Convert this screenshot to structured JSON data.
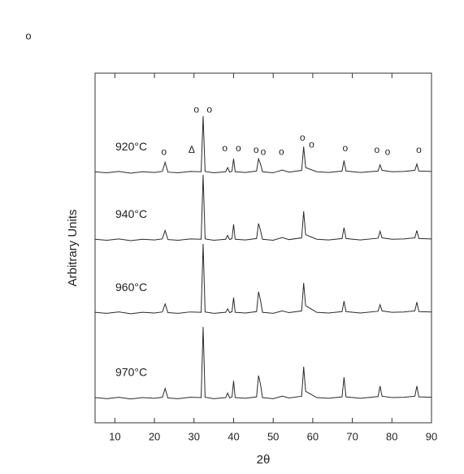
{
  "chart_data": {
    "type": "line",
    "corner_mark": "o",
    "x_label": "2θ",
    "y_label": "Arbitrary Units",
    "xlim": [
      5,
      90
    ],
    "xticks": [
      10,
      20,
      30,
      40,
      50,
      60,
      70,
      80,
      90
    ],
    "ylim": [
      0,
      100
    ],
    "x": [
      5,
      8,
      11,
      14,
      17,
      20,
      22,
      22.7,
      23.4,
      26,
      29,
      31.8,
      32.3,
      32.8,
      35,
      38,
      38.5,
      39,
      39.6,
      40,
      40.4,
      43,
      45.8,
      46.3,
      46.8,
      47.3,
      50,
      52.3,
      54,
      57.2,
      57.7,
      58.2,
      61,
      64,
      67.4,
      67.9,
      68.4,
      72,
      76.5,
      77,
      77.5,
      80,
      83,
      85.8,
      86.3,
      86.8,
      90
    ],
    "series": [
      {
        "name": "920°C",
        "color": "#2a2a2a",
        "values": [
          71.8,
          71.5,
          71.9,
          71.4,
          71.8,
          71.6,
          71.9,
          74.5,
          71.7,
          71.5,
          71.9,
          71.8,
          87.7,
          71.9,
          71.5,
          71.8,
          73.0,
          71.7,
          72.0,
          75.5,
          71.8,
          71.6,
          72.0,
          75.5,
          74.0,
          71.8,
          71.5,
          72.3,
          71.7,
          72.2,
          79.0,
          73.0,
          71.8,
          71.6,
          72.0,
          75.0,
          72.0,
          71.6,
          72.0,
          73.8,
          72.2,
          71.8,
          71.9,
          72.2,
          74.0,
          72.0,
          71.9
        ]
      },
      {
        "name": "940°C",
        "color": "#2a2a2a",
        "values": [
          52.5,
          52.2,
          52.6,
          52.1,
          52.5,
          52.3,
          52.6,
          55.0,
          52.4,
          52.2,
          52.6,
          52.5,
          70.9,
          52.6,
          52.2,
          52.5,
          53.6,
          52.4,
          52.7,
          56.8,
          52.5,
          52.3,
          52.7,
          57.0,
          55.0,
          52.5,
          52.2,
          53.0,
          52.4,
          52.9,
          60.5,
          53.8,
          52.5,
          52.3,
          52.7,
          55.8,
          52.7,
          52.3,
          52.8,
          54.8,
          52.9,
          52.5,
          52.6,
          52.9,
          55.0,
          52.7,
          52.6
        ]
      },
      {
        "name": "960°C",
        "color": "#2a2a2a",
        "values": [
          31.6,
          31.3,
          31.7,
          31.2,
          31.6,
          31.4,
          31.7,
          34.0,
          31.5,
          31.3,
          31.7,
          31.6,
          51.2,
          31.7,
          31.3,
          31.6,
          32.6,
          31.5,
          31.8,
          35.8,
          31.6,
          31.4,
          31.8,
          37.5,
          35.0,
          31.6,
          31.3,
          32.0,
          31.5,
          32.0,
          40.0,
          33.5,
          31.6,
          31.4,
          31.8,
          34.8,
          31.8,
          31.4,
          31.9,
          33.8,
          32.0,
          31.6,
          31.7,
          32.0,
          34.5,
          31.8,
          31.7
        ]
      },
      {
        "name": "970°C",
        "color": "#2a2a2a",
        "values": [
          7.2,
          6.9,
          7.3,
          6.8,
          7.2,
          7.0,
          7.3,
          9.8,
          7.1,
          6.9,
          7.3,
          7.2,
          27.4,
          7.3,
          6.9,
          7.2,
          8.5,
          7.1,
          7.4,
          12.0,
          7.2,
          7.0,
          7.4,
          13.5,
          11.0,
          7.2,
          6.9,
          7.6,
          7.1,
          7.6,
          16.0,
          9.0,
          7.2,
          7.0,
          7.4,
          13.0,
          7.4,
          7.0,
          7.5,
          10.5,
          7.6,
          7.2,
          7.3,
          7.6,
          10.5,
          7.4,
          7.3
        ]
      }
    ],
    "peak_markers": [
      {
        "label": "o",
        "x": 22.4,
        "y": 77.4
      },
      {
        "label": "Δ",
        "x": 29.4,
        "y": 77.9
      },
      {
        "label": "o",
        "x": 30.6,
        "y": 89.5
      },
      {
        "label": "o",
        "x": 33.9,
        "y": 89.5
      },
      {
        "label": "o",
        "x": 37.8,
        "y": 78.4
      },
      {
        "label": "o",
        "x": 41.2,
        "y": 78.4
      },
      {
        "label": "o",
        "x": 45.7,
        "y": 77.9
      },
      {
        "label": "o",
        "x": 47.5,
        "y": 77.4
      },
      {
        "label": "o",
        "x": 52.1,
        "y": 77.4
      },
      {
        "label": "o",
        "x": 57.4,
        "y": 81.4
      },
      {
        "label": "o",
        "x": 59.7,
        "y": 79.5
      },
      {
        "label": "o",
        "x": 68.2,
        "y": 78.4
      },
      {
        "label": "o",
        "x": 76.2,
        "y": 77.9
      },
      {
        "label": "o",
        "x": 78.9,
        "y": 77.4
      },
      {
        "label": "o",
        "x": 86.8,
        "y": 77.9
      }
    ]
  }
}
